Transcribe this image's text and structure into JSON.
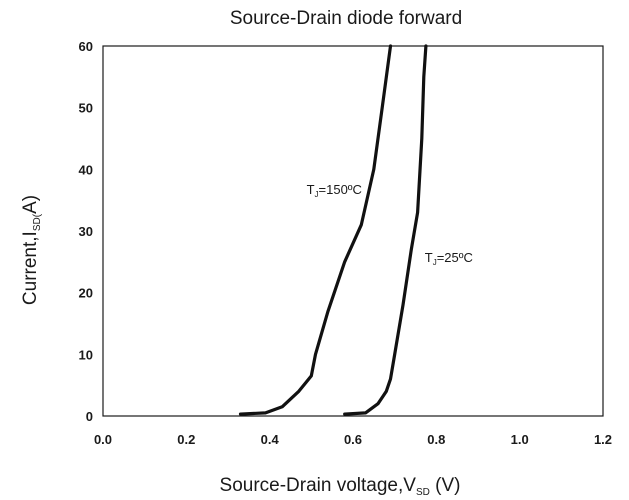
{
  "chart_data": {
    "type": "line",
    "title": "Source-Drain diode forward",
    "xlabel": {
      "main": "Source-Drain voltage,V",
      "sub": "SD",
      "unit": " (V)"
    },
    "ylabel": {
      "main": "Current,I",
      "sub": "SD(",
      "unit": "A)"
    },
    "xlim": [
      0.0,
      1.2
    ],
    "ylim": [
      0,
      60
    ],
    "x_ticks": [
      "0.0",
      "0.2",
      "0.4",
      "0.6",
      "0.8",
      "1.0",
      "1.2"
    ],
    "y_ticks": [
      "0",
      "10",
      "20",
      "30",
      "40",
      "50",
      "60"
    ],
    "grid": false,
    "legend": "none",
    "series": [
      {
        "annotation": {
          "main": "T",
          "sub": "J",
          "rest": "=150ºC",
          "x": 0.555,
          "y": 36
        },
        "color": "#111111",
        "x": [
          0.33,
          0.39,
          0.43,
          0.47,
          0.5,
          0.51,
          0.54,
          0.58,
          0.62,
          0.65,
          0.67,
          0.69
        ],
        "y": [
          0.3,
          0.5,
          1.5,
          4,
          6.5,
          10,
          17,
          25,
          31,
          40,
          50,
          60
        ]
      },
      {
        "annotation": {
          "main": "T",
          "sub": "J",
          "rest": "=25ºC",
          "x": 0.83,
          "y": 25
        },
        "color": "#111111",
        "x": [
          0.58,
          0.63,
          0.66,
          0.68,
          0.69,
          0.7,
          0.72,
          0.74,
          0.755,
          0.765,
          0.77,
          0.775
        ],
        "y": [
          0.3,
          0.5,
          2,
          4,
          6,
          10,
          18,
          27,
          33,
          45,
          55,
          60
        ]
      }
    ]
  }
}
